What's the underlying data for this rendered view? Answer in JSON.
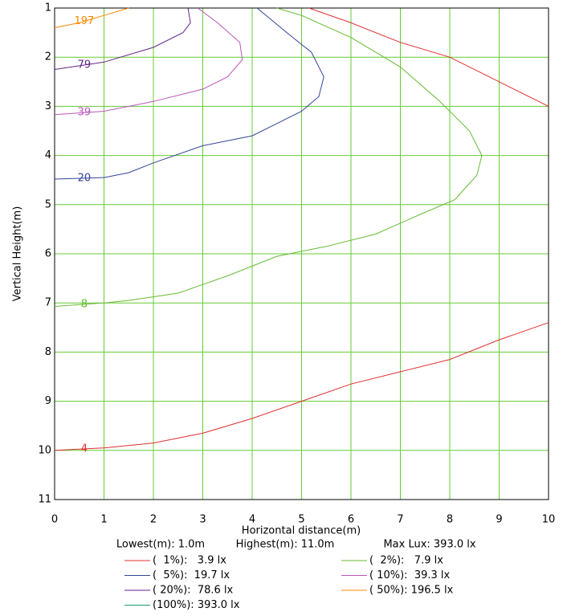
{
  "chart_data": {
    "type": "line",
    "xlabel": "Horizontal distance(m)",
    "ylabel": "Vertical Height(m)",
    "xlim": [
      0,
      10
    ],
    "ylim": [
      11,
      1
    ],
    "xticks": [
      0,
      1,
      2,
      3,
      4,
      5,
      6,
      7,
      8,
      9,
      10
    ],
    "yticks": [
      1,
      2,
      3,
      4,
      5,
      6,
      7,
      8,
      9,
      10,
      11
    ],
    "grid": true,
    "grid_color": "#66cc33",
    "info": [
      "Lowest(m): 1.0m",
      "Highest(m): 11.0m",
      "Max Lux: 393.0 lx"
    ],
    "series": [
      {
        "name": "(  1%):   3.9 lx",
        "label": "4",
        "color": "#e03030",
        "x": [
          0,
          1,
          2,
          3,
          4,
          5,
          6,
          7,
          8,
          9,
          10,
          null,
          5.15,
          6,
          7,
          8,
          9,
          10
        ],
        "y": [
          10,
          9.95,
          9.85,
          9.65,
          9.35,
          9.0,
          8.65,
          8.4,
          8.15,
          7.75,
          7.4,
          null,
          1,
          1.3,
          1.7,
          2.0,
          2.5,
          3.0
        ]
      },
      {
        "name": "(  2%):   7.9 lx",
        "label": "8",
        "color": "#66bb33",
        "x": [
          4.5,
          5,
          6,
          7,
          7.8,
          8.4,
          8.65,
          8.55,
          8.1,
          7.4,
          6.5,
          5.5,
          4.5,
          3.5,
          2.5,
          1.5,
          1,
          0
        ],
        "y": [
          1,
          1.15,
          1.6,
          2.2,
          2.9,
          3.5,
          4.0,
          4.4,
          4.9,
          5.2,
          5.6,
          5.85,
          6.05,
          6.45,
          6.8,
          6.95,
          7.0,
          7.07
        ]
      },
      {
        "name": "(  5%):  19.7 lx",
        "label": "20",
        "color": "#334499",
        "x": [
          4.1,
          4.7,
          5.2,
          5.45,
          5.35,
          5,
          4.5,
          4,
          3,
          2,
          1.5,
          1,
          0
        ],
        "y": [
          1,
          1.5,
          1.9,
          2.4,
          2.8,
          3.1,
          3.35,
          3.6,
          3.8,
          4.15,
          4.35,
          4.45,
          4.48
        ]
      },
      {
        "name": "( 10%):  39.3 lx",
        "label": "39",
        "color": "#bb55bb",
        "x": [
          2.9,
          3.3,
          3.75,
          3.8,
          3.5,
          3,
          2,
          1,
          0
        ],
        "y": [
          1,
          1.3,
          1.7,
          2.05,
          2.4,
          2.65,
          2.9,
          3.1,
          3.17
        ]
      },
      {
        "name": "( 20%):  78.6 lx",
        "label": "79",
        "color": "#662288",
        "x": [
          2.7,
          2.75,
          2.6,
          2,
          1,
          0
        ],
        "y": [
          1,
          1.3,
          1.5,
          1.8,
          2.1,
          2.25
        ]
      },
      {
        "name": "( 50%): 196.5 lx",
        "label": "197",
        "color": "#ff8800",
        "x": [
          1.5,
          1,
          0.5,
          0
        ],
        "y": [
          1,
          1.15,
          1.3,
          1.4
        ]
      },
      {
        "name": "(100%): 393.0 lx",
        "color": "#229966",
        "x": [],
        "y": []
      }
    ]
  }
}
